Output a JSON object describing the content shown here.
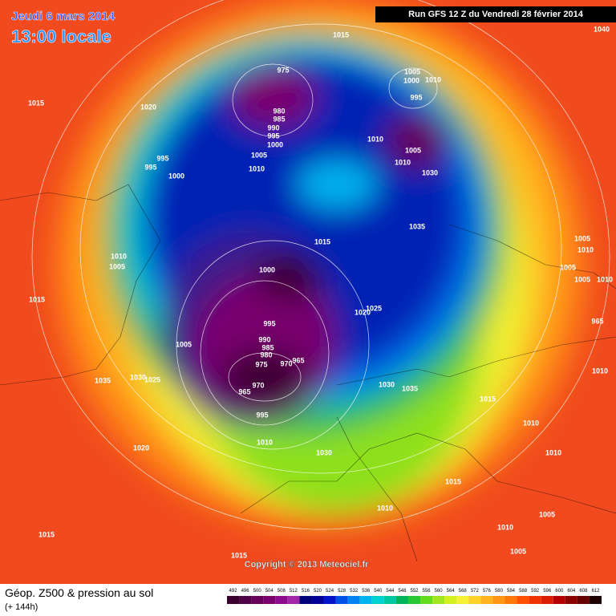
{
  "header": {
    "date": "Jeudi 6 mars 2014",
    "time": "13:00 locale",
    "run": "Run GFS 12 Z du Vendredi 28 février 2014"
  },
  "copyright": "Copyright © 2013 Meteociel.fr",
  "footer": {
    "title": "Géop. Z500 & pression au sol",
    "lead": "(+ 144h)"
  },
  "isobar_labels": [
    1015,
    1015,
    1020,
    975,
    980,
    985,
    990,
    995,
    1000,
    1005,
    1010,
    995,
    995,
    1000,
    1005,
    1000,
    1010,
    995,
    1010,
    1005,
    1010,
    1030,
    1035,
    1015,
    1000,
    1025,
    1020,
    995,
    990,
    985,
    980,
    975,
    965,
    970,
    970,
    965,
    995,
    1005,
    1010,
    1005,
    1015,
    1030,
    1025,
    1035,
    1020,
    1010,
    1030,
    1030,
    1035,
    1015,
    1015,
    1010,
    1010,
    1005,
    1005,
    1015,
    1015,
    1010,
    1010,
    1010,
    965,
    1005,
    1010,
    1005,
    1005,
    1010,
    1040
  ],
  "colorbar": {
    "ticks": [
      492,
      496,
      500,
      504,
      508,
      512,
      516,
      520,
      524,
      528,
      532,
      536,
      540,
      544,
      548,
      552,
      556,
      560,
      564,
      568,
      572,
      576,
      580,
      584,
      588,
      592,
      596,
      600,
      604,
      608,
      612
    ],
    "colors": [
      "#3c0030",
      "#500046",
      "#64005a",
      "#78006e",
      "#8c0a8c",
      "#a028a8",
      "#000078",
      "#000096",
      "#0014c8",
      "#0050e6",
      "#0082f0",
      "#00b4f0",
      "#00d2d2",
      "#00c8a0",
      "#00b45a",
      "#28c832",
      "#64dc1e",
      "#a0e61e",
      "#d2f01e",
      "#f5f032",
      "#ffd228",
      "#ffb41e",
      "#ff9614",
      "#ff780a",
      "#ff5000",
      "#f03200",
      "#dc1e00",
      "#b40000",
      "#8c0000",
      "#640000",
      "#1e0000"
    ]
  }
}
